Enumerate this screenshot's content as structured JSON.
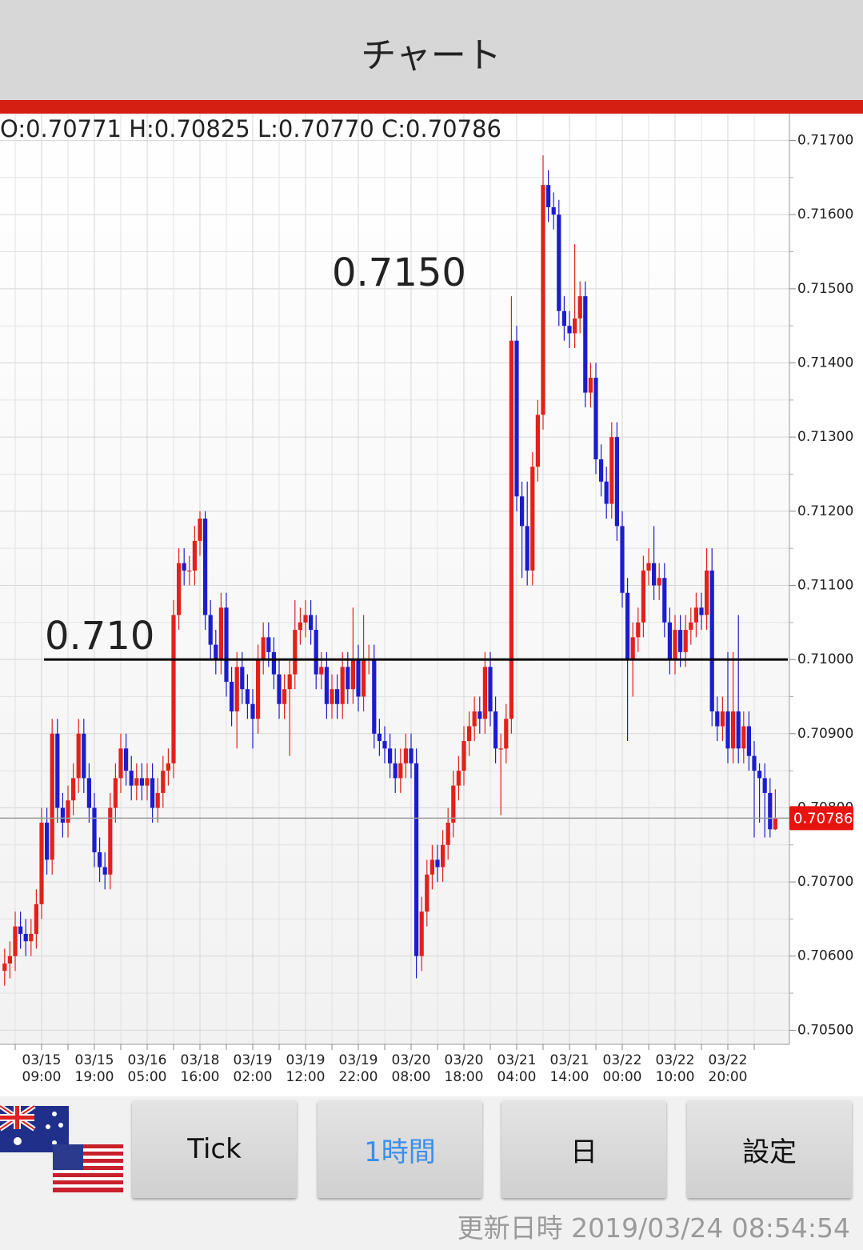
{
  "header": {
    "title": "チャート"
  },
  "chart_data": {
    "type": "candlestick",
    "ohlc_label": "O:0.70771 H:0.70825 L:0.70770 C:0.70786",
    "categories": [
      null,
      null,
      null,
      null,
      null,
      null,
      null,
      "03/15 09:00",
      null,
      null,
      null,
      null,
      null,
      null,
      null,
      null,
      null,
      "03/15 19:00",
      null,
      null,
      null,
      null,
      null,
      null,
      null,
      null,
      null,
      "03/16 05:00",
      null,
      null,
      null,
      null,
      null,
      null,
      null,
      null,
      null,
      "03/18 16:00",
      null,
      null,
      null,
      null,
      null,
      null,
      null,
      null,
      null,
      "03/19 02:00",
      null,
      null,
      null,
      null,
      null,
      null,
      null,
      null,
      null,
      "03/19 12:00",
      null,
      null,
      null,
      null,
      null,
      null,
      null,
      null,
      null,
      "03/19 22:00",
      null,
      null,
      null,
      null,
      null,
      null,
      null,
      null,
      null,
      "03/20 08:00",
      null,
      null,
      null,
      null,
      null,
      null,
      null,
      null,
      null,
      "03/20 18:00",
      null,
      null,
      null,
      null,
      null,
      null,
      null,
      null,
      null,
      "03/21 04:00",
      null,
      null,
      null,
      null,
      null,
      null,
      null,
      null,
      null,
      "03/21 14:00",
      null,
      null,
      null,
      null,
      null,
      null,
      null,
      null,
      null,
      "03/22 00:00",
      null,
      null,
      null,
      null,
      null,
      null,
      null,
      null,
      null,
      "03/22 10:00",
      null,
      null,
      null,
      null,
      null,
      null,
      null,
      null,
      null,
      "03/22 20:00",
      null,
      null,
      null,
      null,
      null,
      null,
      null,
      null,
      null
    ],
    "open": [
      0.7058,
      0.7059,
      0.706,
      0.7064,
      0.7063,
      0.7062,
      0.7063,
      0.7067,
      0.7078,
      0.7073,
      0.709,
      0.708,
      0.7078,
      0.7081,
      0.7084,
      0.709,
      0.7084,
      0.708,
      0.7074,
      0.7072,
      0.7071,
      0.708,
      0.7084,
      0.7088,
      0.7085,
      0.7083,
      0.7084,
      0.7083,
      0.7084,
      0.708,
      0.7082,
      0.7085,
      0.7086,
      0.7106,
      0.7113,
      0.7112,
      0.7112,
      0.7116,
      0.7119,
      0.7106,
      0.7102,
      0.71,
      0.7107,
      0.7097,
      0.7093,
      0.7099,
      0.7096,
      0.7094,
      0.7092,
      0.71,
      0.7103,
      0.7101,
      0.7098,
      0.7094,
      0.7096,
      0.7098,
      0.7104,
      0.7105,
      0.7106,
      0.7104,
      0.7098,
      0.7099,
      0.7094,
      0.7096,
      0.7094,
      0.7099,
      0.7096,
      0.71,
      0.7095,
      0.71,
      0.71,
      0.709,
      0.7089,
      0.7088,
      0.7086,
      0.7084,
      0.7086,
      0.7088,
      0.7086,
      0.706,
      0.7066,
      0.7071,
      0.7073,
      0.7072,
      0.7075,
      0.7078,
      0.7083,
      0.7085,
      0.7089,
      0.7091,
      0.7093,
      0.7092,
      0.7099,
      0.7093,
      0.7088,
      0.7088,
      0.7092,
      0.7143,
      0.7122,
      0.7118,
      0.7112,
      0.7126,
      0.7133,
      0.7164,
      0.7161,
      0.716,
      0.7147,
      0.7145,
      0.7144,
      0.7146,
      0.7149,
      0.7136,
      0.7138,
      0.7127,
      0.7124,
      0.7121,
      0.713,
      0.7118,
      0.7109,
      0.71,
      0.7103,
      0.7105,
      0.7112,
      0.7113,
      0.711,
      0.7111,
      0.7105,
      0.71,
      0.7104,
      0.7101,
      0.7104,
      0.7105,
      0.7107,
      0.7106,
      0.7112,
      0.7093,
      0.7091,
      0.7093,
      0.7088,
      0.7093,
      0.7088,
      0.7091,
      0.7087,
      0.7085,
      0.7084,
      0.7082,
      0.70771
    ],
    "high": [
      0.7061,
      0.7062,
      0.7066,
      0.7066,
      0.7065,
      0.7065,
      0.7069,
      0.708,
      0.708,
      0.7092,
      0.7092,
      0.7082,
      0.7083,
      0.7086,
      0.7092,
      0.7092,
      0.7086,
      0.7082,
      0.7076,
      0.7074,
      0.7082,
      0.7086,
      0.709,
      0.709,
      0.7087,
      0.7086,
      0.7086,
      0.7086,
      0.7086,
      0.7084,
      0.7087,
      0.7088,
      0.7108,
      0.7115,
      0.7115,
      0.7114,
      0.7118,
      0.712,
      0.712,
      0.7108,
      0.7104,
      0.7109,
      0.7109,
      0.7099,
      0.7101,
      0.7101,
      0.7098,
      0.7096,
      0.7102,
      0.7105,
      0.7105,
      0.7103,
      0.71,
      0.7098,
      0.71,
      0.7108,
      0.7107,
      0.7108,
      0.7108,
      0.7106,
      0.7101,
      0.7101,
      0.7098,
      0.7098,
      0.7101,
      0.7101,
      0.7107,
      0.7102,
      0.7106,
      0.7102,
      0.7102,
      0.7092,
      0.7091,
      0.709,
      0.7088,
      0.7088,
      0.709,
      0.709,
      0.7088,
      0.7068,
      0.7073,
      0.7075,
      0.7075,
      0.7077,
      0.708,
      0.7085,
      0.7087,
      0.7091,
      0.7093,
      0.7095,
      0.7095,
      0.7101,
      0.7101,
      0.7095,
      0.709,
      0.7094,
      0.7149,
      0.7145,
      0.7124,
      0.7124,
      0.7128,
      0.7135,
      0.7168,
      0.7166,
      0.7163,
      0.7162,
      0.7149,
      0.7147,
      0.7156,
      0.7151,
      0.7151,
      0.714,
      0.714,
      0.7129,
      0.7126,
      0.7132,
      0.7132,
      0.712,
      0.7111,
      0.7105,
      0.7107,
      0.7114,
      0.7115,
      0.7118,
      0.7113,
      0.7113,
      0.7107,
      0.7106,
      0.7106,
      0.7106,
      0.7107,
      0.7109,
      0.7109,
      0.7115,
      0.7115,
      0.7095,
      0.7095,
      0.7101,
      0.7101,
      0.7106,
      0.7093,
      0.7093,
      0.7089,
      0.7086,
      0.7086,
      0.7084,
      0.70825
    ],
    "low": [
      0.7056,
      0.7057,
      0.7058,
      0.7061,
      0.706,
      0.706,
      0.7061,
      0.7065,
      0.7071,
      0.7071,
      0.7078,
      0.7076,
      0.7076,
      0.7079,
      0.7082,
      0.7082,
      0.7078,
      0.7072,
      0.707,
      0.7069,
      0.7069,
      0.7078,
      0.7082,
      0.7083,
      0.7081,
      0.7081,
      0.7081,
      0.7081,
      0.7078,
      0.7078,
      0.708,
      0.7083,
      0.7084,
      0.7104,
      0.711,
      0.711,
      0.711,
      0.7114,
      0.7104,
      0.71,
      0.7098,
      0.7098,
      0.7095,
      0.7091,
      0.7088,
      0.7094,
      0.7092,
      0.7088,
      0.709,
      0.7098,
      0.7099,
      0.7096,
      0.7092,
      0.7092,
      0.7087,
      0.7096,
      0.7102,
      0.7103,
      0.7102,
      0.7096,
      0.7096,
      0.7092,
      0.7092,
      0.7092,
      0.7092,
      0.7094,
      0.7094,
      0.7093,
      0.7093,
      0.7098,
      0.7088,
      0.7087,
      0.7086,
      0.7084,
      0.7082,
      0.7082,
      0.7084,
      0.7084,
      0.7057,
      0.7058,
      0.7064,
      0.7069,
      0.707,
      0.707,
      0.7073,
      0.7076,
      0.7081,
      0.7083,
      0.7087,
      0.7089,
      0.709,
      0.709,
      0.7091,
      0.7086,
      0.7079,
      0.7086,
      0.709,
      0.712,
      0.7111,
      0.711,
      0.711,
      0.7124,
      0.7131,
      0.7159,
      0.7158,
      0.7145,
      0.7143,
      0.7142,
      0.7142,
      0.7144,
      0.7134,
      0.7134,
      0.7125,
      0.7122,
      0.7119,
      0.7119,
      0.7116,
      0.7107,
      0.7089,
      0.7095,
      0.7101,
      0.7103,
      0.711,
      0.7108,
      0.7108,
      0.7103,
      0.7098,
      0.7098,
      0.7099,
      0.7099,
      0.7102,
      0.7103,
      0.7104,
      0.7104,
      0.7091,
      0.7089,
      0.7089,
      0.7086,
      0.7086,
      0.7086,
      0.7086,
      0.7085,
      0.7076,
      0.7078,
      0.7076,
      0.7076,
      0.7077
    ],
    "close": [
      0.7059,
      0.706,
      0.7064,
      0.7063,
      0.7062,
      0.7063,
      0.7067,
      0.7078,
      0.7073,
      0.709,
      0.708,
      0.7078,
      0.7081,
      0.7084,
      0.709,
      0.7084,
      0.708,
      0.7074,
      0.7072,
      0.7071,
      0.708,
      0.7084,
      0.7088,
      0.7085,
      0.7083,
      0.7084,
      0.7083,
      0.7084,
      0.708,
      0.7082,
      0.7085,
      0.7086,
      0.7106,
      0.7113,
      0.7112,
      0.7112,
      0.7116,
      0.7119,
      0.7106,
      0.7102,
      0.71,
      0.7107,
      0.7097,
      0.7093,
      0.7099,
      0.7096,
      0.7094,
      0.7092,
      0.71,
      0.7103,
      0.7101,
      0.7098,
      0.7094,
      0.7096,
      0.7098,
      0.7104,
      0.7105,
      0.7106,
      0.7104,
      0.7098,
      0.7099,
      0.7094,
      0.7096,
      0.7094,
      0.7099,
      0.7096,
      0.71,
      0.7095,
      0.71,
      0.71,
      0.709,
      0.7089,
      0.7088,
      0.7086,
      0.7084,
      0.7086,
      0.7088,
      0.7086,
      0.706,
      0.7066,
      0.7071,
      0.7073,
      0.7072,
      0.7075,
      0.7078,
      0.7083,
      0.7085,
      0.7089,
      0.7091,
      0.7093,
      0.7092,
      0.7099,
      0.7093,
      0.7088,
      0.7088,
      0.7092,
      0.7143,
      0.7122,
      0.7118,
      0.7112,
      0.7126,
      0.7133,
      0.7164,
      0.7161,
      0.716,
      0.7147,
      0.7145,
      0.7144,
      0.7146,
      0.7149,
      0.7136,
      0.7138,
      0.7127,
      0.7124,
      0.7121,
      0.713,
      0.7118,
      0.7109,
      0.71,
      0.7103,
      0.7105,
      0.7112,
      0.7113,
      0.711,
      0.7111,
      0.7105,
      0.71,
      0.7104,
      0.7101,
      0.7104,
      0.7105,
      0.7107,
      0.7106,
      0.7112,
      0.7093,
      0.7091,
      0.7093,
      0.7088,
      0.7093,
      0.7088,
      0.7091,
      0.7087,
      0.7085,
      0.7084,
      0.7082,
      0.70771,
      0.70786
    ],
    "up_color": "#e3201b",
    "down_color": "#1c1ccf",
    "ylim": [
      0.70481,
      0.71733
    ],
    "yticks": [
      {
        "value": 0.705,
        "label": "0.70500"
      },
      {
        "value": 0.706,
        "label": "0.70600"
      },
      {
        "value": 0.707,
        "label": "0.70700"
      },
      {
        "value": 0.708,
        "label": "0.70800"
      },
      {
        "value": 0.709,
        "label": "0.70900"
      },
      {
        "value": 0.71,
        "label": "0.71000"
      },
      {
        "value": 0.711,
        "label": "0.71100"
      },
      {
        "value": 0.712,
        "label": "0.71200"
      },
      {
        "value": 0.713,
        "label": "0.71300"
      },
      {
        "value": 0.714,
        "label": "0.71400"
      },
      {
        "value": 0.715,
        "label": "0.71500"
      },
      {
        "value": 0.716,
        "label": "0.71600"
      },
      {
        "value": 0.717,
        "label": "0.71700"
      }
    ],
    "grid": true,
    "hline": {
      "value": 0.71,
      "label": "0.710"
    },
    "annotations": [
      {
        "text": "0.7150"
      }
    ],
    "current_price": {
      "value": 0.70786,
      "label": "0.70786"
    }
  },
  "controls": {
    "buttons": [
      "Tick",
      "1時間",
      "日",
      "設定"
    ],
    "active": 1
  },
  "footer": {
    "updated": "更新日時 2019/03/24 08:54:54"
  }
}
